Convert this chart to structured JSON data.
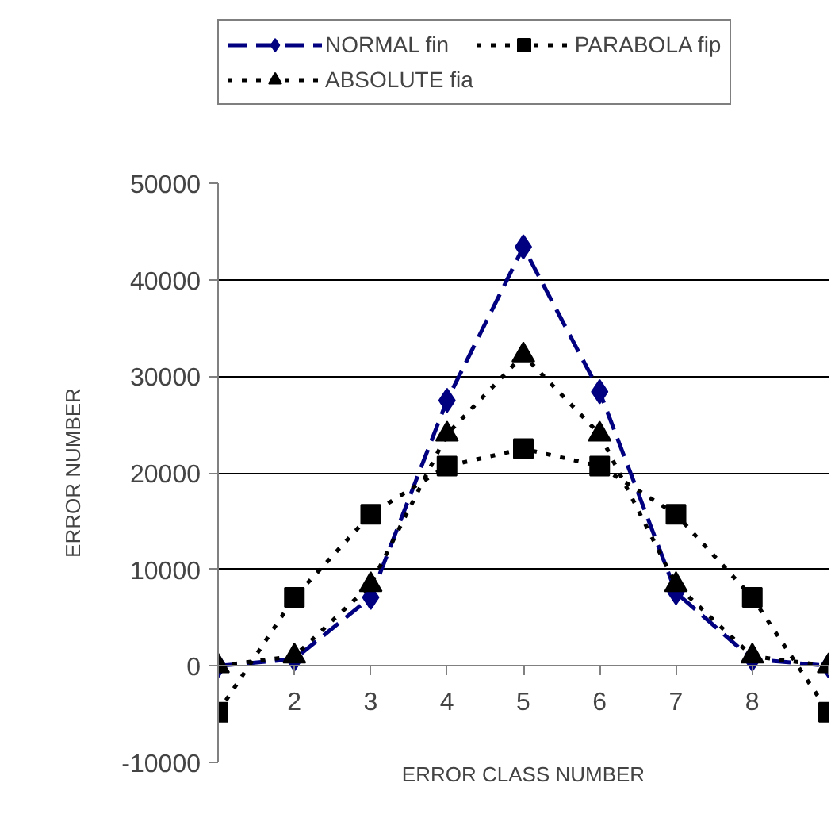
{
  "chart_data": {
    "type": "line",
    "xlabel": "ERROR CLASS NUMBER",
    "ylabel": "ERROR NUMBER",
    "x": [
      1,
      2,
      3,
      4,
      5,
      6,
      7,
      8,
      9
    ],
    "xlim": [
      1,
      9
    ],
    "xticks": [
      {
        "value": 1,
        "label": null
      },
      2,
      3,
      4,
      5,
      6,
      7,
      8,
      {
        "value": 9,
        "label": null
      }
    ],
    "ylim": [
      -10000,
      50000
    ],
    "yticks": [
      -10000,
      0,
      10000,
      20000,
      30000,
      40000,
      50000
    ],
    "grid": "y",
    "legend": "top",
    "series": [
      {
        "name": "NORMAL fin",
        "color": "#000080",
        "marker": "diamond",
        "line_style": "dashed",
        "values": [
          0,
          700,
          7100,
          27500,
          43400,
          28400,
          7600,
          700,
          0
        ]
      },
      {
        "name": "PARABOLA fip",
        "color": "#000000",
        "marker": "square",
        "line_style": "dotted",
        "values": [
          -4800,
          7100,
          15700,
          20700,
          22500,
          20700,
          15700,
          7100,
          -4800
        ]
      },
      {
        "name": "ABSOLUTE fia",
        "color": "#000000",
        "marker": "triangle",
        "line_style": "dotted",
        "values": [
          0,
          1000,
          8400,
          24000,
          32200,
          24000,
          8400,
          1000,
          0
        ]
      }
    ]
  }
}
